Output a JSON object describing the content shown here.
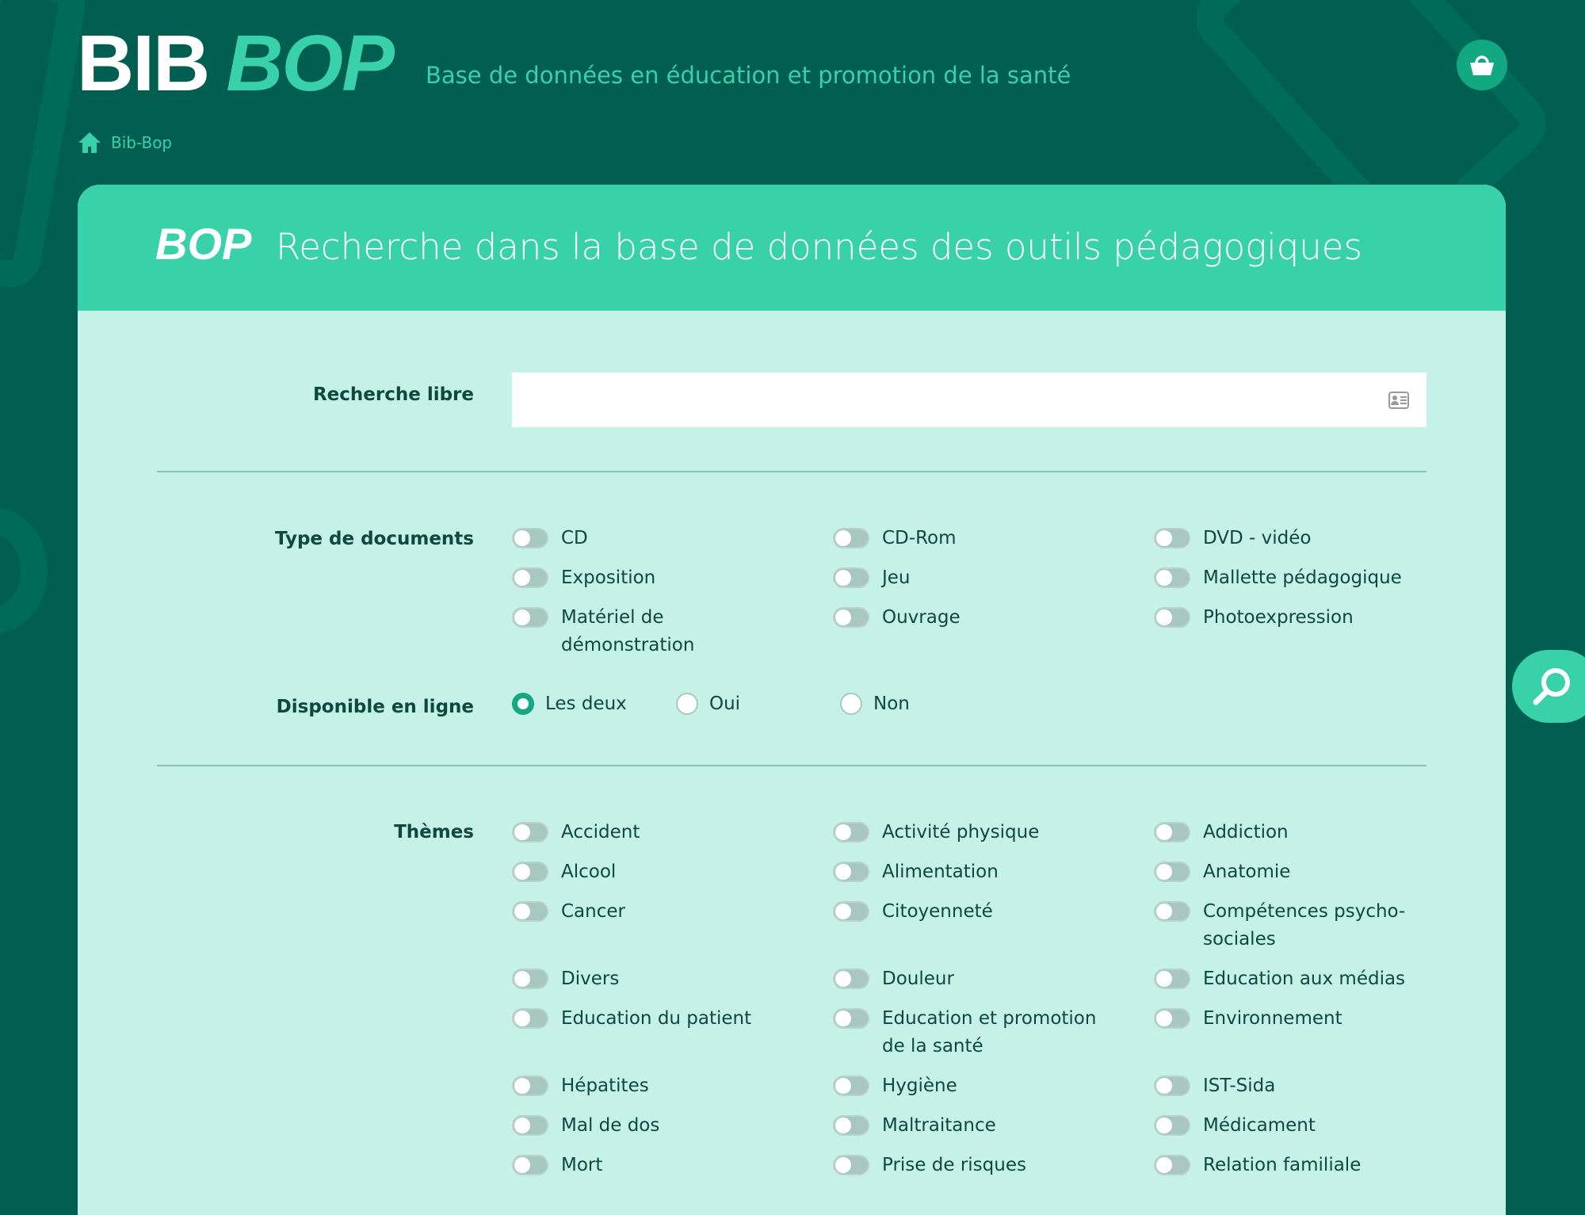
{
  "header": {
    "logo_bib": "BIB",
    "logo_bop": "BOP",
    "tagline": "Base de données en éducation et promotion de la santé",
    "cart_icon": "basket-icon"
  },
  "breadcrumb": {
    "home_icon": "home-icon",
    "label": "Bib-Bop"
  },
  "card": {
    "logo": "BOP",
    "title": "Recherche dans la base de données des outils pédagogiques"
  },
  "free_search": {
    "label": "Recherche libre",
    "value": "",
    "placeholder": ""
  },
  "doc_types": {
    "label": "Type de documents",
    "items": [
      "CD",
      "CD-Rom",
      "DVD - vidéo",
      "Exposition",
      "Jeu",
      "Mallette pédagogique",
      "Matériel de démonstration",
      "Ouvrage",
      "Photoexpression"
    ]
  },
  "online": {
    "label": "Disponible en ligne",
    "options": [
      "Les deux",
      "Oui",
      "Non"
    ],
    "selected": "Les deux"
  },
  "themes": {
    "label": "Thèmes",
    "items": [
      "Accident",
      "Activité physique",
      "Addiction",
      "Alcool",
      "Alimentation",
      "Anatomie",
      "Cancer",
      "Citoyenneté",
      "Compétences psycho-sociales",
      "Divers",
      "Douleur",
      "Education aux médias",
      "Education du patient",
      "Education et promotion de la santé",
      "Environnement",
      "Hépatites",
      "Hygiène",
      "IST-Sida",
      "Mal de dos",
      "Maltraitance",
      "Médicament",
      "Mort",
      "Prise de risques",
      "Relation familiale"
    ]
  },
  "colors": {
    "background": "#005f50",
    "accent": "#38d1a9",
    "panel": "#c6f1e6",
    "text": "#0c4a3d"
  }
}
